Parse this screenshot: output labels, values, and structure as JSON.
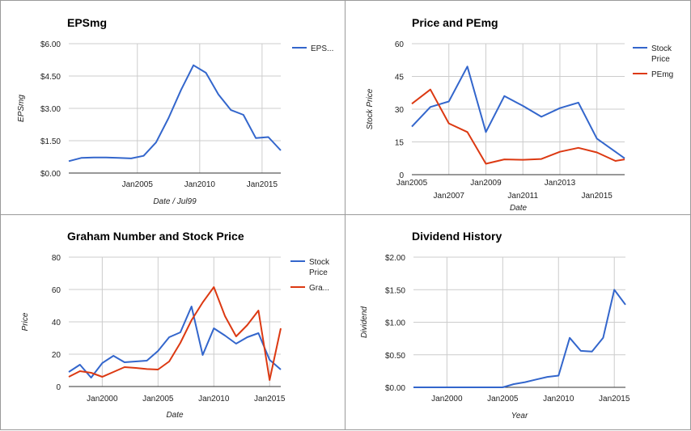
{
  "chart_data": [
    {
      "type": "line",
      "title": "EPSmg",
      "xlabel": "Date / Jul99",
      "ylabel": "EPSmg",
      "xlim": [
        1999.5,
        2016.5
      ],
      "ylim": [
        0,
        6
      ],
      "x_ticks": [
        {
          "v": 2005,
          "label": "Jan2005"
        },
        {
          "v": 2010,
          "label": "Jan2010"
        },
        {
          "v": 2015,
          "label": "Jan2015"
        }
      ],
      "y_ticks": [
        {
          "v": 0,
          "label": "$0.00"
        },
        {
          "v": 1.5,
          "label": "$1.50"
        },
        {
          "v": 3,
          "label": "$3.00"
        },
        {
          "v": 4.5,
          "label": "$4.50"
        },
        {
          "v": 6,
          "label": "$6.00"
        }
      ],
      "grid": true,
      "legend_position": "right",
      "series": [
        {
          "name": "EPS...",
          "color": "#3366cc",
          "x": [
            1999.5,
            2000.5,
            2001.5,
            2002.5,
            2003.5,
            2004.5,
            2005.5,
            2006.5,
            2007.5,
            2008.5,
            2009.5,
            2010.5,
            2011.5,
            2012.5,
            2013.5,
            2014.5,
            2015.5,
            2016.5
          ],
          "y": [
            0.55,
            0.7,
            0.72,
            0.72,
            0.7,
            0.68,
            0.8,
            1.42,
            2.55,
            3.85,
            5.0,
            4.65,
            3.65,
            2.92,
            2.7,
            1.62,
            1.67,
            1.05
          ]
        }
      ]
    },
    {
      "type": "line",
      "title": "Price and PEmg",
      "xlabel": "Date",
      "ylabel": "Stock Price",
      "xlim": [
        2005,
        2016.5
      ],
      "ylim": [
        0,
        60
      ],
      "x_ticks": [
        {
          "v": 2005,
          "label": "Jan2005"
        },
        {
          "v": 2007,
          "label": "Jan2007"
        },
        {
          "v": 2009,
          "label": "Jan2009"
        },
        {
          "v": 2011,
          "label": "Jan2011"
        },
        {
          "v": 2013,
          "label": "Jan2013"
        },
        {
          "v": 2015,
          "label": "Jan2015"
        }
      ],
      "y_ticks": [
        {
          "v": 0,
          "label": "0"
        },
        {
          "v": 15,
          "label": "15"
        },
        {
          "v": 30,
          "label": "30"
        },
        {
          "v": 45,
          "label": "45"
        },
        {
          "v": 60,
          "label": "60"
        }
      ],
      "grid": true,
      "legend_position": "right",
      "series": [
        {
          "name": "Stock Price",
          "color": "#3366cc",
          "x": [
            2005.0,
            2006.0,
            2007.0,
            2008.0,
            2009.0,
            2010.0,
            2011.0,
            2012.0,
            2013.0,
            2014.0,
            2015.0,
            2016.0,
            2016.5
          ],
          "y": [
            22,
            31,
            33.5,
            49.5,
            19.5,
            36,
            31.5,
            26.5,
            30.5,
            33,
            16.5,
            10.5,
            7.5
          ]
        },
        {
          "name": "PEmg",
          "color": "#dc3912",
          "x": [
            2005.0,
            2006.0,
            2007.0,
            2008.0,
            2009.0,
            2010.0,
            2011.0,
            2012.0,
            2013.0,
            2014.0,
            2015.0,
            2016.0,
            2016.5
          ],
          "y": [
            32.5,
            39,
            23.5,
            19.5,
            5,
            7,
            6.8,
            7.2,
            10.5,
            12.3,
            10.2,
            6.3,
            7
          ]
        }
      ]
    },
    {
      "type": "line",
      "title": "Graham Number and Stock Price",
      "xlabel": "Date",
      "ylabel": "Price",
      "xlim": [
        1997,
        2016
      ],
      "ylim": [
        0,
        80
      ],
      "x_ticks": [
        {
          "v": 2000,
          "label": "Jan2000"
        },
        {
          "v": 2005,
          "label": "Jan2005"
        },
        {
          "v": 2010,
          "label": "Jan2010"
        },
        {
          "v": 2015,
          "label": "Jan2015"
        }
      ],
      "y_ticks": [
        {
          "v": 0,
          "label": "0"
        },
        {
          "v": 20,
          "label": "20"
        },
        {
          "v": 40,
          "label": "40"
        },
        {
          "v": 60,
          "label": "60"
        },
        {
          "v": 80,
          "label": "80"
        }
      ],
      "grid": true,
      "legend_position": "right",
      "series": [
        {
          "name": "Stock Price",
          "color": "#3366cc",
          "x": [
            1997.0,
            1998.0,
            1999.0,
            2000.0,
            2001.0,
            2002.0,
            2003.0,
            2004.0,
            2005.0,
            2006.0,
            2007.0,
            2008.0,
            2009.0,
            2010.0,
            2011.0,
            2012.0,
            2013.0,
            2014.0,
            2015.0,
            2016.0
          ],
          "y": [
            9,
            13.5,
            5.5,
            14.5,
            19,
            15,
            15.5,
            16,
            22,
            30.5,
            33.5,
            49.5,
            19.5,
            36,
            31.5,
            26.5,
            30.5,
            33,
            16.5,
            10.5
          ]
        },
        {
          "name": "Gra...",
          "color": "#dc3912",
          "x": [
            1997.0,
            1998.0,
            1999.0,
            2000.0,
            2001.0,
            2002.0,
            2003.0,
            2004.0,
            2005.0,
            2006.0,
            2007.0,
            2008.0,
            2009.0,
            2010.0,
            2011.0,
            2012.0,
            2013.0,
            2014.0,
            2015.0,
            2016.0
          ],
          "y": [
            6,
            9.5,
            8.5,
            6,
            9,
            12,
            11.5,
            10.8,
            10.5,
            15.5,
            27,
            41,
            52,
            61.5,
            43.5,
            31,
            38,
            47,
            4,
            36
          ]
        }
      ]
    },
    {
      "type": "line",
      "title": "Dividend History",
      "xlabel": "Year",
      "ylabel": "Dividend",
      "xlim": [
        1997,
        2016
      ],
      "ylim": [
        0,
        2
      ],
      "x_ticks": [
        {
          "v": 2000,
          "label": "Jan2000"
        },
        {
          "v": 2005,
          "label": "Jan2005"
        },
        {
          "v": 2010,
          "label": "Jan2010"
        },
        {
          "v": 2015,
          "label": "Jan2015"
        }
      ],
      "y_ticks": [
        {
          "v": 0,
          "label": "$0.00"
        },
        {
          "v": 0.5,
          "label": "$0.50"
        },
        {
          "v": 1,
          "label": "$1.00"
        },
        {
          "v": 1.5,
          "label": "$1.50"
        },
        {
          "v": 2,
          "label": "$2.00"
        }
      ],
      "grid": true,
      "legend_position": "none",
      "series": [
        {
          "name": "",
          "color": "#3366cc",
          "x": [
            1997,
            1998,
            1999,
            2000,
            2001,
            2002,
            2003,
            2004,
            2005,
            2006,
            2007,
            2008,
            2009,
            2010,
            2011,
            2012,
            2013,
            2014,
            2015,
            2016
          ],
          "y": [
            0,
            0,
            0,
            0,
            0,
            0,
            0,
            0,
            0,
            0.05,
            0.08,
            0.12,
            0.16,
            0.18,
            0.76,
            0.56,
            0.55,
            0.76,
            1.5,
            1.27
          ]
        }
      ]
    }
  ]
}
